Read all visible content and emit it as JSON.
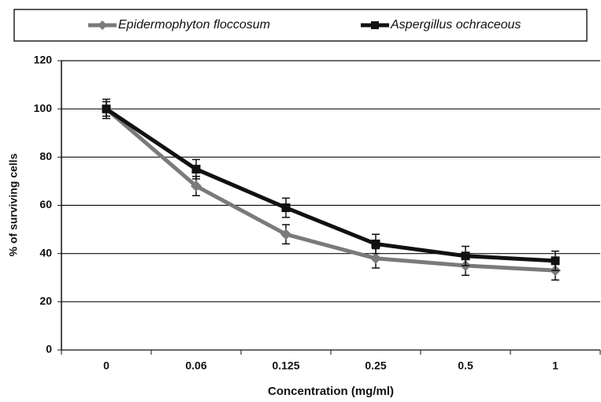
{
  "chart_data": {
    "type": "line",
    "xlabel": "Concentration (mg/ml)",
    "ylabel": "% of surviving cells",
    "categories": [
      "0",
      "0.06",
      "0.125",
      "0.25",
      "0.5",
      "1"
    ],
    "series": [
      {
        "name": "Epidermophyton floccosum",
        "color": "#7a7a7a",
        "marker": "diamond",
        "values": [
          100,
          68,
          48,
          38,
          35,
          33
        ],
        "errors": [
          3,
          4,
          4,
          4,
          4,
          4
        ]
      },
      {
        "name": "Aspergillus ochraceous",
        "color": "#111111",
        "marker": "square",
        "values": [
          100,
          75,
          59,
          44,
          39,
          37
        ],
        "errors": [
          4,
          4,
          4,
          4,
          4,
          4
        ]
      }
    ],
    "ylim": [
      0,
      120
    ],
    "yticks": [
      0,
      20,
      40,
      60,
      80,
      100,
      120
    ],
    "grid": true,
    "legend": "top"
  }
}
